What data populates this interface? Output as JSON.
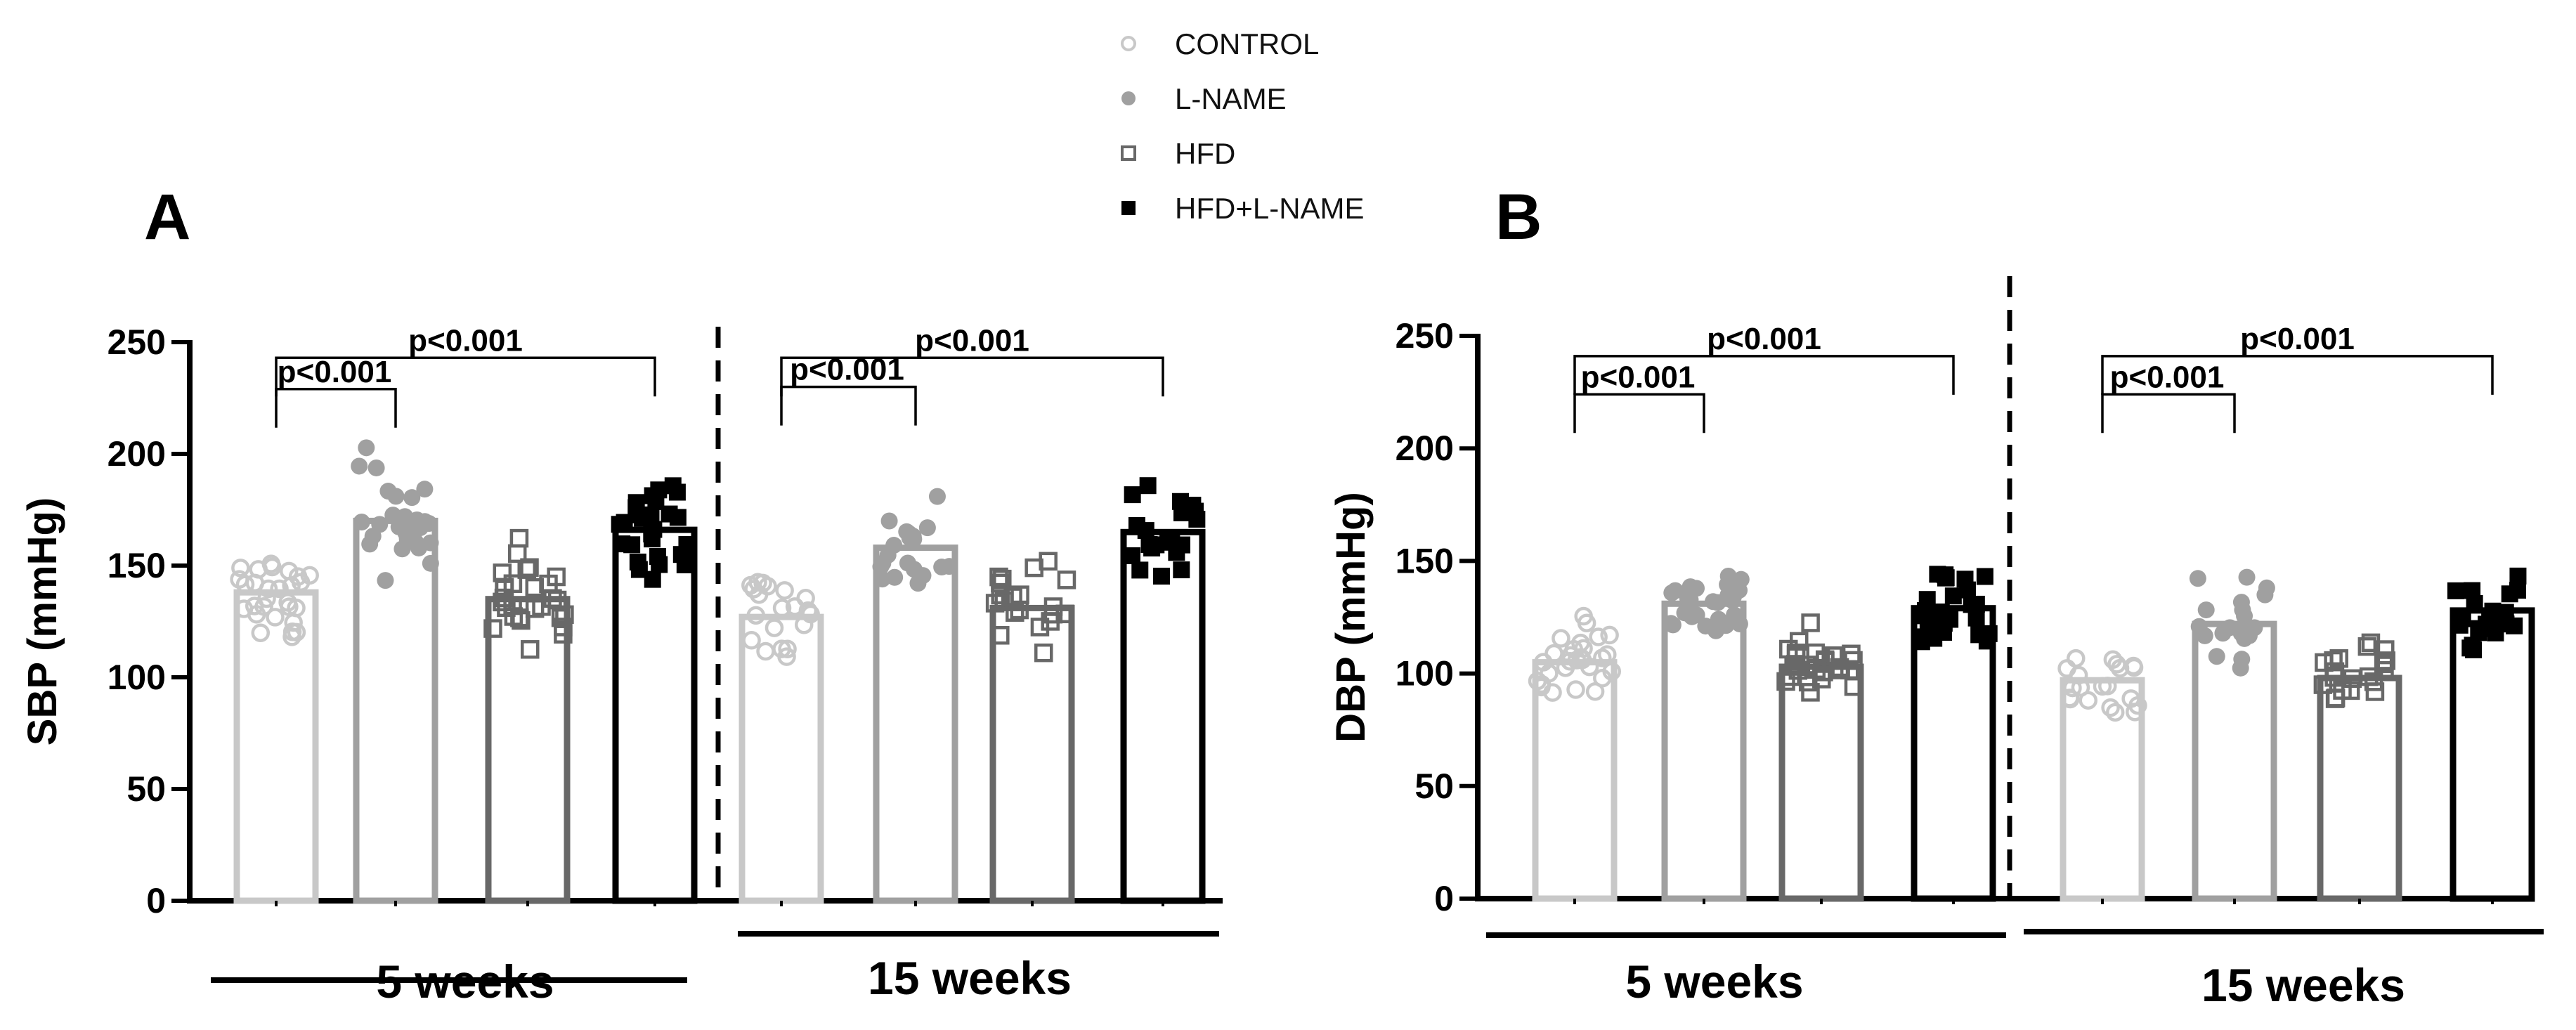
{
  "legend": {
    "items": [
      {
        "label": "CONTROL",
        "marker": "open-circle",
        "color": "#c8c8c8"
      },
      {
        "label": "L-NAME",
        "marker": "filled-circle",
        "color": "#a0a0a0"
      },
      {
        "label": "HFD",
        "marker": "open-square",
        "color": "#686868"
      },
      {
        "label": "HFD+L-NAME",
        "marker": "filled-square",
        "color": "#000000"
      }
    ]
  },
  "chart_data": [
    {
      "type": "bar",
      "panel_label": "A",
      "ylabel": "SBP (mmHg)",
      "ylim": [
        0,
        250
      ],
      "yticks": [
        0,
        50,
        100,
        150,
        200,
        250
      ],
      "groups": [
        "5 weeks",
        "15 weeks"
      ],
      "series": [
        {
          "name": "CONTROL",
          "values": [
            138,
            127
          ]
        },
        {
          "name": "L-NAME",
          "values": [
            170,
            158
          ]
        },
        {
          "name": "HFD",
          "values": [
            135,
            131
          ]
        },
        {
          "name": "HFD+L-NAME",
          "values": [
            166,
            165
          ]
        }
      ],
      "significance": [
        {
          "group": "5 weeks",
          "from": "CONTROL",
          "to": "L-NAME",
          "label": "p<0.001",
          "level": 229
        },
        {
          "group": "5 weeks",
          "from": "CONTROL",
          "to": "HFD+L-NAME",
          "label": "p<0.001",
          "level": 243
        },
        {
          "group": "15 weeks",
          "from": "CONTROL",
          "to": "L-NAME",
          "label": "p<0.001",
          "level": 230
        },
        {
          "group": "15 weeks",
          "from": "CONTROL",
          "to": "HFD+L-NAME",
          "label": "p<0.001",
          "level": 243
        }
      ]
    },
    {
      "type": "bar",
      "panel_label": "B",
      "ylabel": "DBP (mmHg)",
      "ylim": [
        0,
        250
      ],
      "yticks": [
        0,
        50,
        100,
        150,
        200,
        250
      ],
      "groups": [
        "5 weeks",
        "15 weeks"
      ],
      "series": [
        {
          "name": "CONTROL",
          "values": [
            105,
            97
          ]
        },
        {
          "name": "L-NAME",
          "values": [
            131,
            122
          ]
        },
        {
          "name": "HFD",
          "values": [
            103,
            98
          ]
        },
        {
          "name": "HFD+L-NAME",
          "values": [
            129,
            128
          ]
        }
      ],
      "significance": [
        {
          "group": "5 weeks",
          "from": "CONTROL",
          "to": "L-NAME",
          "label": "p<0.001",
          "level": 224
        },
        {
          "group": "5 weeks",
          "from": "CONTROL",
          "to": "HFD+L-NAME",
          "label": "p<0.001",
          "level": 241
        },
        {
          "group": "15 weeks",
          "from": "CONTROL",
          "to": "L-NAME",
          "label": "p<0.001",
          "level": 224
        },
        {
          "group": "15 weeks",
          "from": "CONTROL",
          "to": "HFD+L-NAME",
          "label": "p<0.001",
          "level": 241
        }
      ]
    }
  ]
}
